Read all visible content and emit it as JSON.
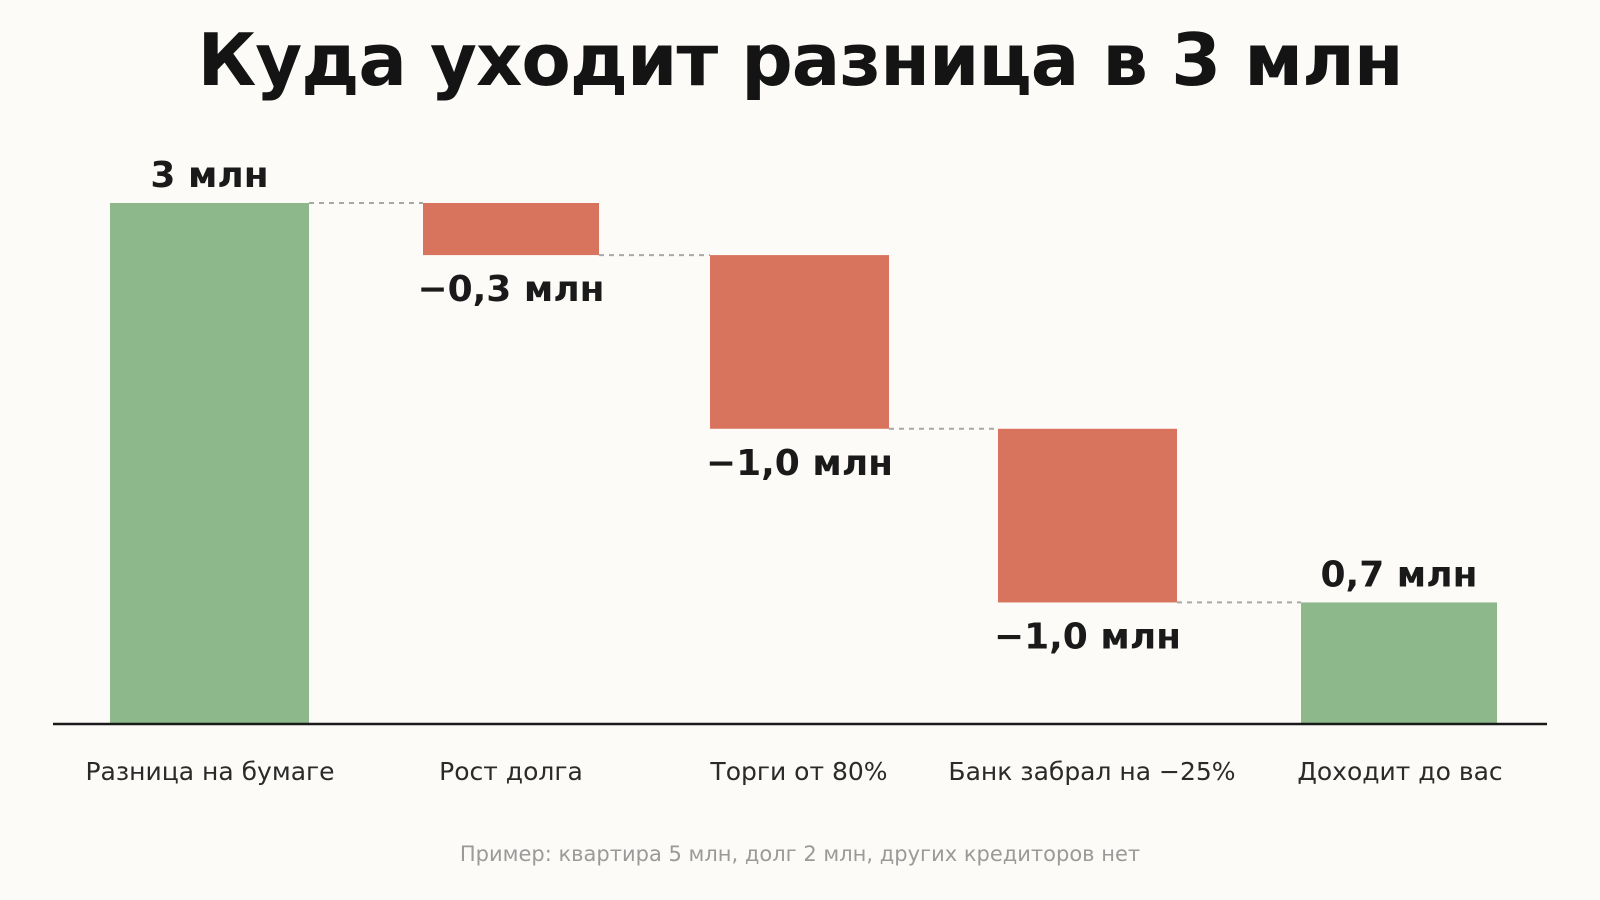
{
  "title": "Куда уходит разница в 3 млн",
  "footnote": "Пример: квартира 5 млн, долг 2 млн, других кредиторов нет",
  "colors": {
    "positive": "#8cb88b",
    "negative": "#d8735e",
    "connector": "#a8a8a8",
    "axis": "#1a1a1a"
  },
  "chart_data": {
    "type": "bar",
    "subtype": "waterfall",
    "title": "Куда уходит разница в 3 млн",
    "ylim": [
      0,
      3.0
    ],
    "grid": false,
    "categories": [
      "Разница на бумаге",
      "Рост долга",
      "Торги от 80%",
      "Банк забрал на −25%",
      "Доходит до вас"
    ],
    "steps": [
      {
        "category": "Разница на бумаге",
        "kind": "total",
        "start": 0,
        "end": 3.0,
        "label": "3 млн"
      },
      {
        "category": "Рост долга",
        "kind": "decrease",
        "start": 3.0,
        "end": 2.7,
        "label": "−0,3 млн"
      },
      {
        "category": "Торги от 80%",
        "kind": "decrease",
        "start": 2.7,
        "end": 1.7,
        "label": "−1,0 млн"
      },
      {
        "category": "Банк забрал на −25%",
        "kind": "decrease",
        "start": 1.7,
        "end": 0.7,
        "label": "−1,0 млн"
      },
      {
        "category": "Доходит до вас",
        "kind": "total",
        "start": 0,
        "end": 0.7,
        "label": "0,7 млн"
      }
    ]
  }
}
